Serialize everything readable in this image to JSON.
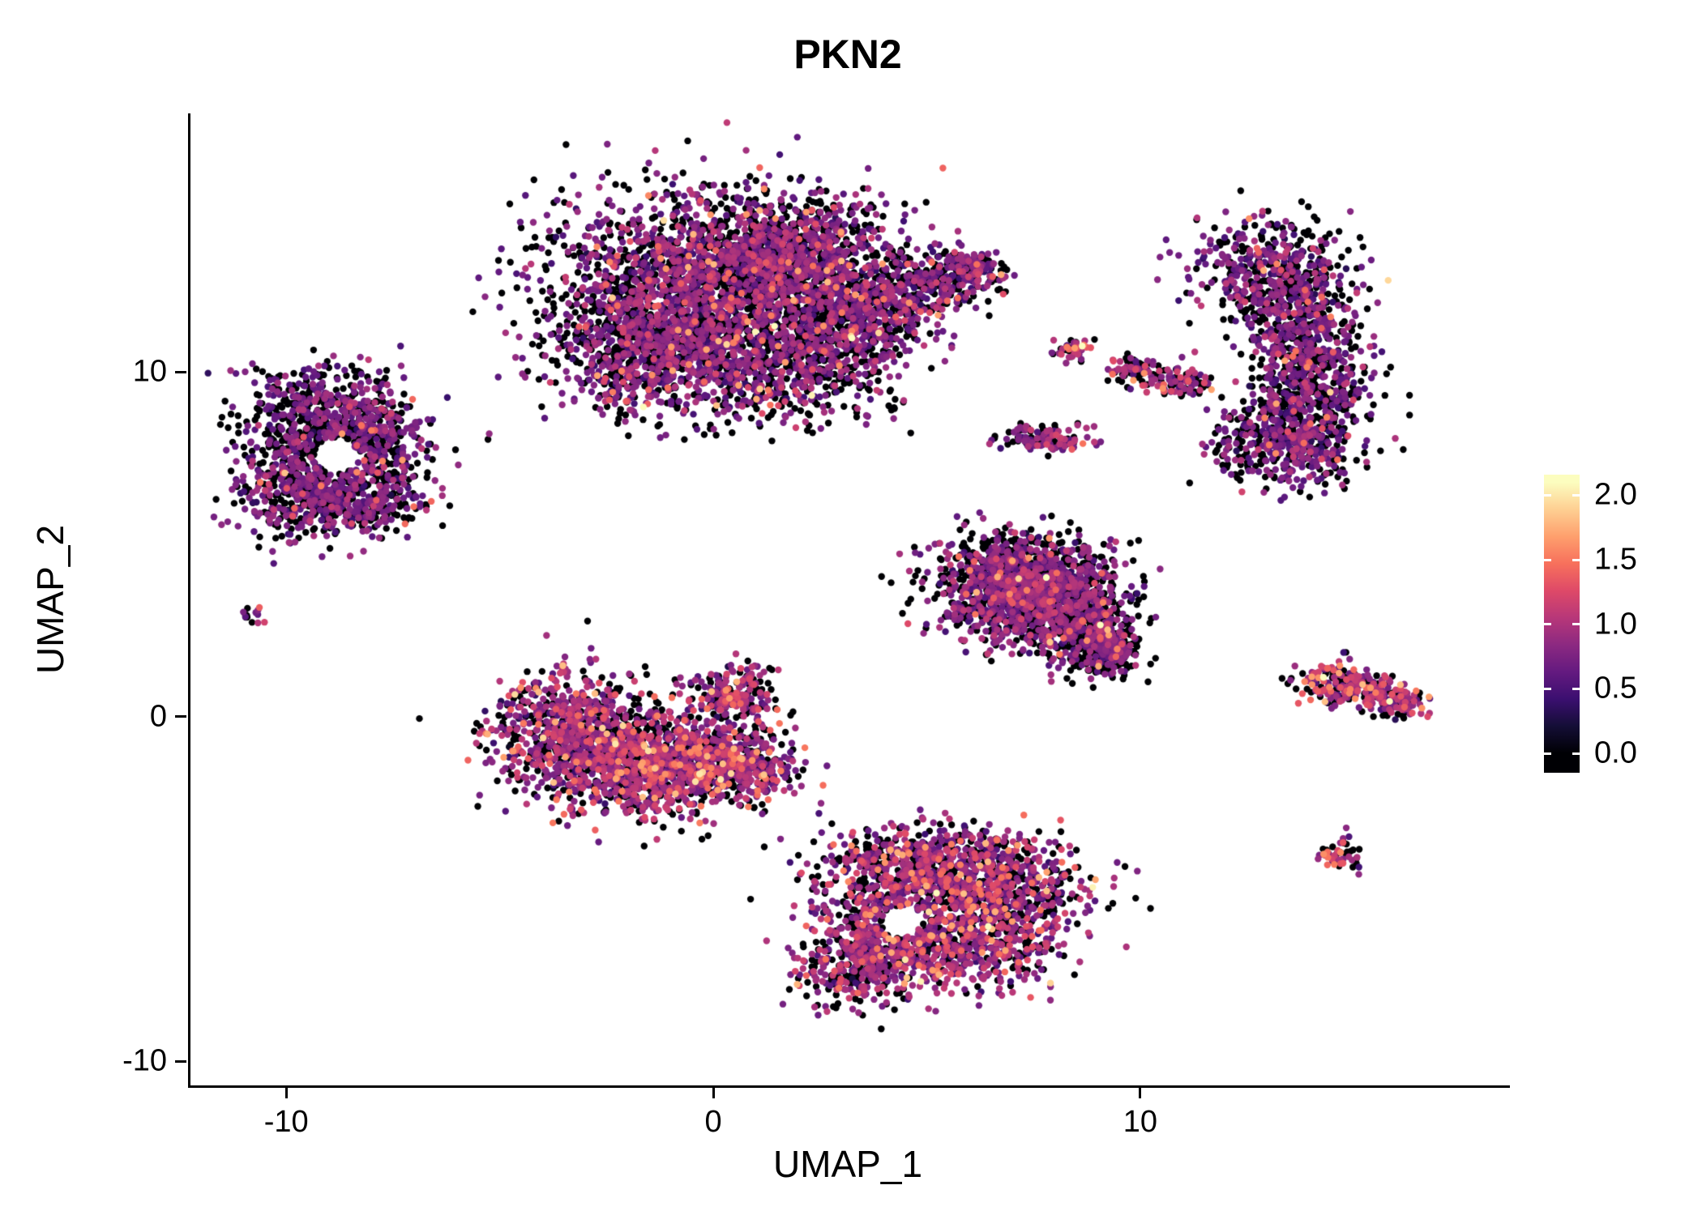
{
  "chart_data": {
    "type": "scatter",
    "title": "PKN2",
    "xlabel": "UMAP_1",
    "ylabel": "UMAP_2",
    "xlim": [
      -12.3,
      18.6
    ],
    "ylim": [
      -10.7,
      17.5
    ],
    "x_ticks": [
      {
        "v": -10,
        "label": "-10"
      },
      {
        "v": 0,
        "label": "0"
      },
      {
        "v": 10,
        "label": "10"
      }
    ],
    "y_ticks": [
      {
        "v": 10,
        "label": "10"
      },
      {
        "v": 0,
        "label": "0"
      },
      {
        "v": -10,
        "label": "-10"
      }
    ],
    "grid": false,
    "legend_position": "right",
    "point_radius_px": 4.2,
    "seed": 1337,
    "colormap_name": "magma",
    "colormap": [
      {
        "t": 0.0,
        "c": "#000004"
      },
      {
        "t": 0.1,
        "c": "#140e36"
      },
      {
        "t": 0.2,
        "c": "#3b0f70"
      },
      {
        "t": 0.3,
        "c": "#641a80"
      },
      {
        "t": 0.4,
        "c": "#8c2981"
      },
      {
        "t": 0.5,
        "c": "#b73779"
      },
      {
        "t": 0.6,
        "c": "#de4968"
      },
      {
        "t": 0.7,
        "c": "#f7705c"
      },
      {
        "t": 0.8,
        "c": "#fe9f6d"
      },
      {
        "t": 0.9,
        "c": "#fecf92"
      },
      {
        "t": 1.0,
        "c": "#fcfdbf"
      }
    ],
    "colorbar": {
      "domain": [
        -0.15,
        2.16
      ],
      "max_value": 2.1,
      "ticks": [
        {
          "v": 0.0,
          "label": "0.0"
        },
        {
          "v": 0.5,
          "label": "0.5"
        },
        {
          "v": 1.0,
          "label": "1.0"
        },
        {
          "v": 1.5,
          "label": "1.5"
        },
        {
          "v": 2.0,
          "label": "2.0"
        }
      ]
    },
    "clusters": [
      {
        "name": "top-center-large",
        "count": 5200,
        "components": [
          {
            "cx": -0.2,
            "cy": 12.6,
            "sx": 1.9,
            "sy": 1.3,
            "w": 3.0
          },
          {
            "cx": -1.6,
            "cy": 10.6,
            "sx": 1.1,
            "sy": 0.9,
            "w": 1.2
          },
          {
            "cx": 1.4,
            "cy": 10.4,
            "sx": 1.4,
            "sy": 0.9,
            "w": 1.5
          },
          {
            "cx": 1.8,
            "cy": 13.6,
            "sx": 1.2,
            "sy": 0.8,
            "w": 1.2
          },
          {
            "cx": 3.4,
            "cy": 11.6,
            "sx": 0.8,
            "sy": 0.7,
            "w": 0.8
          },
          {
            "cx": 4.9,
            "cy": 12.5,
            "sx": 0.8,
            "sy": 0.4,
            "w": 0.5
          },
          {
            "cx": 6.0,
            "cy": 13.0,
            "sx": 0.35,
            "sy": 0.25,
            "w": 0.2
          }
        ],
        "holes": [],
        "expr": {
          "p0": 0.45,
          "mu": 0.75,
          "sd": 0.2,
          "hi_p": 0.07,
          "hi_mu": 1.35,
          "hi_sd": 0.3
        }
      },
      {
        "name": "top-right-crescent",
        "count": 1700,
        "components": [
          {
            "cx": 12.9,
            "cy": 13.0,
            "sx": 0.85,
            "sy": 0.75,
            "w": 1.0
          },
          {
            "cx": 13.8,
            "cy": 11.3,
            "sx": 0.7,
            "sy": 0.9,
            "w": 1.0
          },
          {
            "cx": 13.9,
            "cy": 9.3,
            "sx": 0.7,
            "sy": 0.9,
            "w": 1.0
          },
          {
            "cx": 13.3,
            "cy": 7.9,
            "sx": 0.85,
            "sy": 0.6,
            "w": 0.9
          }
        ],
        "holes": [],
        "expr": {
          "p0": 0.45,
          "mu": 0.72,
          "sd": 0.18,
          "hi_p": 0.06,
          "hi_mu": 1.3,
          "hi_sd": 0.3
        }
      },
      {
        "name": "mid-small-dot",
        "count": 50,
        "components": [
          {
            "cx": 8.4,
            "cy": 10.6,
            "sx": 0.22,
            "sy": 0.18,
            "w": 1
          }
        ],
        "holes": [],
        "expr": {
          "p0": 0.3,
          "mu": 0.9,
          "sd": 0.25,
          "hi_p": 0.2,
          "hi_mu": 1.4,
          "hi_sd": 0.3
        }
      },
      {
        "name": "mid-streak",
        "count": 160,
        "components": [
          {
            "cx": 9.9,
            "cy": 10.1,
            "sx": 0.35,
            "sy": 0.18,
            "w": 1
          },
          {
            "cx": 10.8,
            "cy": 9.7,
            "sx": 0.45,
            "sy": 0.2,
            "w": 1
          }
        ],
        "holes": [],
        "expr": {
          "p0": 0.4,
          "mu": 0.85,
          "sd": 0.22,
          "hi_p": 0.12,
          "hi_mu": 1.35,
          "hi_sd": 0.3
        }
      },
      {
        "name": "mid-streak-lower",
        "count": 130,
        "components": [
          {
            "cx": 7.5,
            "cy": 8.1,
            "sx": 0.45,
            "sy": 0.22,
            "w": 1
          },
          {
            "cx": 8.3,
            "cy": 8.0,
            "sx": 0.3,
            "sy": 0.2,
            "w": 0.6
          }
        ],
        "holes": [],
        "expr": {
          "p0": 0.45,
          "mu": 0.75,
          "sd": 0.2,
          "hi_p": 0.08,
          "hi_mu": 1.3,
          "hi_sd": 0.3
        }
      },
      {
        "name": "left-ring",
        "count": 1500,
        "components": [
          {
            "cx": -9.2,
            "cy": 8.8,
            "sx": 0.95,
            "sy": 0.7,
            "w": 1.2
          },
          {
            "cx": -8.0,
            "cy": 7.8,
            "sx": 0.7,
            "sy": 0.9,
            "w": 1.0
          },
          {
            "cx": -9.9,
            "cy": 7.0,
            "sx": 0.7,
            "sy": 0.8,
            "w": 1.0
          },
          {
            "cx": -8.6,
            "cy": 6.2,
            "sx": 0.9,
            "sy": 0.45,
            "w": 0.9
          }
        ],
        "holes": [
          {
            "cx": -8.9,
            "cy": 7.6,
            "r": 0.5
          }
        ],
        "expr": {
          "p0": 0.46,
          "mu": 0.72,
          "sd": 0.18,
          "hi_p": 0.05,
          "hi_mu": 1.3,
          "hi_sd": 0.25
        }
      },
      {
        "name": "tiny-left-dot",
        "count": 14,
        "components": [
          {
            "cx": -10.8,
            "cy": 3.0,
            "sx": 0.16,
            "sy": 0.13,
            "w": 1
          }
        ],
        "holes": [],
        "expr": {
          "p0": 0.3,
          "mu": 0.8,
          "sd": 0.25,
          "hi_p": 0.15,
          "hi_mu": 1.3,
          "hi_sd": 0.25
        }
      },
      {
        "name": "mid-right-triangle",
        "count": 2100,
        "components": [
          {
            "cx": 7.1,
            "cy": 4.3,
            "sx": 1.0,
            "sy": 0.55,
            "w": 1.1
          },
          {
            "cx": 6.8,
            "cy": 3.3,
            "sx": 0.8,
            "sy": 0.6,
            "w": 1.0
          },
          {
            "cx": 8.1,
            "cy": 3.4,
            "sx": 0.8,
            "sy": 0.65,
            "w": 1.0
          },
          {
            "cx": 8.8,
            "cy": 2.3,
            "sx": 0.55,
            "sy": 0.5,
            "w": 0.7
          },
          {
            "cx": 9.3,
            "cy": 1.9,
            "sx": 0.3,
            "sy": 0.3,
            "w": 0.25
          }
        ],
        "holes": [],
        "expr": {
          "p0": 0.44,
          "mu": 0.75,
          "sd": 0.2,
          "hi_p": 0.07,
          "hi_mu": 1.35,
          "hi_sd": 0.3
        }
      },
      {
        "name": "center-left",
        "count": 2500,
        "components": [
          {
            "cx": -3.5,
            "cy": -0.4,
            "sx": 0.9,
            "sy": 0.9,
            "w": 1.1
          },
          {
            "cx": -2.2,
            "cy": -1.2,
            "sx": 1.0,
            "sy": 0.8,
            "w": 1.2
          },
          {
            "cx": -0.8,
            "cy": -1.4,
            "sx": 0.9,
            "sy": 0.7,
            "w": 1.0
          },
          {
            "cx": 0.6,
            "cy": -1.4,
            "sx": 0.7,
            "sy": 0.5,
            "w": 0.6
          },
          {
            "cx": 0.4,
            "cy": 0.6,
            "sx": 0.5,
            "sy": 0.45,
            "w": 0.35
          }
        ],
        "holes": [],
        "expr": {
          "p0": 0.34,
          "mu": 0.85,
          "sd": 0.22,
          "hi_p": 0.15,
          "hi_mu": 1.4,
          "hi_sd": 0.3
        }
      },
      {
        "name": "bottom-center",
        "count": 2300,
        "components": [
          {
            "cx": 4.6,
            "cy": -4.3,
            "sx": 1.1,
            "sy": 0.6,
            "w": 1.0
          },
          {
            "cx": 6.6,
            "cy": -4.9,
            "sx": 1.1,
            "sy": 0.7,
            "w": 1.1
          },
          {
            "cx": 3.9,
            "cy": -6.2,
            "sx": 0.9,
            "sy": 0.8,
            "w": 1.0
          },
          {
            "cx": 6.1,
            "cy": -6.6,
            "sx": 1.1,
            "sy": 0.7,
            "w": 1.0
          },
          {
            "cx": 3.4,
            "cy": -7.4,
            "sx": 0.7,
            "sy": 0.5,
            "w": 0.5
          }
        ],
        "holes": [
          {
            "cx": 4.35,
            "cy": -5.95,
            "r": 0.45
          }
        ],
        "expr": {
          "p0": 0.36,
          "mu": 0.85,
          "sd": 0.22,
          "hi_p": 0.14,
          "hi_mu": 1.4,
          "hi_sd": 0.3
        }
      },
      {
        "name": "right-arrow",
        "count": 320,
        "components": [
          {
            "cx": 14.5,
            "cy": 1.0,
            "sx": 0.45,
            "sy": 0.3,
            "w": 1.0
          },
          {
            "cx": 15.3,
            "cy": 0.7,
            "sx": 0.5,
            "sy": 0.28,
            "w": 1.0
          },
          {
            "cx": 16.0,
            "cy": 0.4,
            "sx": 0.3,
            "sy": 0.22,
            "w": 0.5
          }
        ],
        "holes": [],
        "expr": {
          "p0": 0.3,
          "mu": 0.9,
          "sd": 0.25,
          "hi_p": 0.2,
          "hi_mu": 1.4,
          "hi_sd": 0.3
        }
      },
      {
        "name": "bottom-right-dot",
        "count": 55,
        "components": [
          {
            "cx": 14.6,
            "cy": -4.0,
            "sx": 0.28,
            "sy": 0.24,
            "w": 1
          }
        ],
        "holes": [],
        "expr": {
          "p0": 0.35,
          "mu": 0.85,
          "sd": 0.25,
          "hi_p": 0.18,
          "hi_mu": 1.35,
          "hi_sd": 0.3
        }
      }
    ]
  }
}
